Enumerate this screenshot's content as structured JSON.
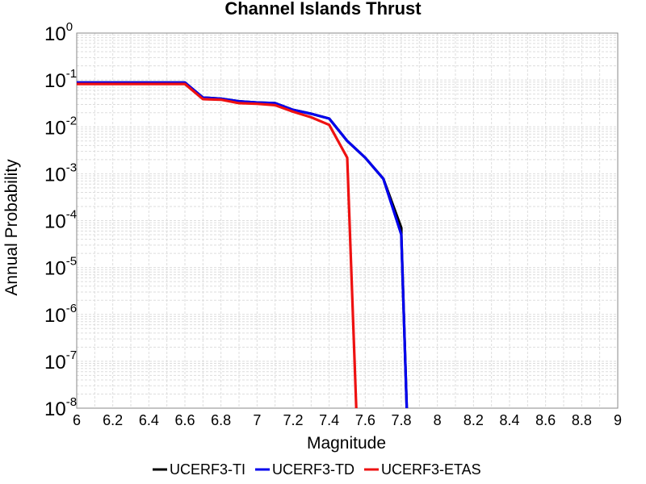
{
  "chart_data": {
    "type": "line",
    "title": "Channel Islands Thrust",
    "xlabel": "Magnitude",
    "ylabel": "Annual Probability",
    "xlim": [
      6,
      9
    ],
    "ylim": [
      1e-08,
      1
    ],
    "yscale": "log",
    "grid": true,
    "legend_position": "bottom",
    "x_ticks": [
      "6",
      "6.2",
      "6.4",
      "6.6",
      "6.8",
      "7",
      "7.2",
      "7.4",
      "7.6",
      "7.8",
      "8",
      "8.2",
      "8.4",
      "8.6",
      "8.8",
      "9"
    ],
    "y_ticks": [
      {
        "base": "10",
        "exp": "0"
      },
      {
        "base": "10",
        "exp": "-1"
      },
      {
        "base": "10",
        "exp": "-2"
      },
      {
        "base": "10",
        "exp": "-3"
      },
      {
        "base": "10",
        "exp": "-4"
      },
      {
        "base": "10",
        "exp": "-5"
      },
      {
        "base": "10",
        "exp": "-6"
      },
      {
        "base": "10",
        "exp": "-7"
      },
      {
        "base": "10",
        "exp": "-8"
      }
    ],
    "series": [
      {
        "name": "UCERF3-TI",
        "color": "#000000",
        "x": [
          6.0,
          6.1,
          6.2,
          6.3,
          6.4,
          6.5,
          6.6,
          6.7,
          6.8,
          6.9,
          7.0,
          7.1,
          7.2,
          7.3,
          7.4,
          7.5,
          7.6,
          7.7,
          7.8,
          7.8,
          7.83
        ],
        "y": [
          0.088,
          0.088,
          0.088,
          0.088,
          0.088,
          0.088,
          0.088,
          0.042,
          0.04,
          0.035,
          0.033,
          0.032,
          0.023,
          0.019,
          0.015,
          0.005,
          0.0022,
          0.00078,
          7e-05,
          5e-05,
          1e-08
        ]
      },
      {
        "name": "UCERF3-TD",
        "color": "#0000ee",
        "x": [
          6.0,
          6.1,
          6.2,
          6.3,
          6.4,
          6.5,
          6.6,
          6.7,
          6.8,
          6.9,
          7.0,
          7.1,
          7.2,
          7.3,
          7.4,
          7.5,
          7.6,
          7.7,
          7.8,
          7.8,
          7.83
        ],
        "y": [
          0.088,
          0.088,
          0.088,
          0.088,
          0.088,
          0.088,
          0.088,
          0.042,
          0.04,
          0.035,
          0.033,
          0.032,
          0.023,
          0.019,
          0.015,
          0.005,
          0.0022,
          0.00078,
          5e-05,
          4.5e-05,
          1e-08
        ]
      },
      {
        "name": "UCERF3-ETAS",
        "color": "#ee1111",
        "x": [
          6.0,
          6.1,
          6.2,
          6.3,
          6.4,
          6.5,
          6.6,
          6.7,
          6.8,
          6.9,
          7.0,
          7.1,
          7.2,
          7.3,
          7.4,
          7.5,
          7.55
        ],
        "y": [
          0.082,
          0.082,
          0.082,
          0.082,
          0.082,
          0.082,
          0.082,
          0.039,
          0.038,
          0.032,
          0.031,
          0.029,
          0.021,
          0.016,
          0.011,
          0.0022,
          1e-08
        ]
      }
    ]
  }
}
